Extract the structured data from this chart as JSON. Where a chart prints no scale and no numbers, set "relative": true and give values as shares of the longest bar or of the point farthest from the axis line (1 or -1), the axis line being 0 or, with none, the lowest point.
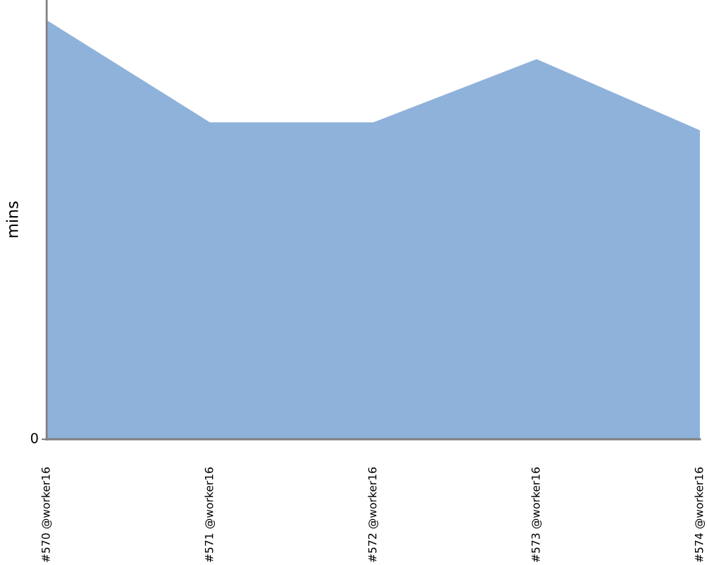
{
  "chart_data": {
    "type": "area",
    "ylabel": "mins",
    "relative": true,
    "categories": [
      "#570 @worker16",
      "#571 @worker16",
      "#572 @worker16",
      "#573 @worker16",
      "#574 @worker16"
    ],
    "annotations": [
      "0"
    ],
    "series": [
      {
        "color": "#8fb2da",
        "values": [
          1.0,
          0.756,
          0.756,
          0.907,
          0.737
        ]
      }
    ],
    "grid": false
  }
}
